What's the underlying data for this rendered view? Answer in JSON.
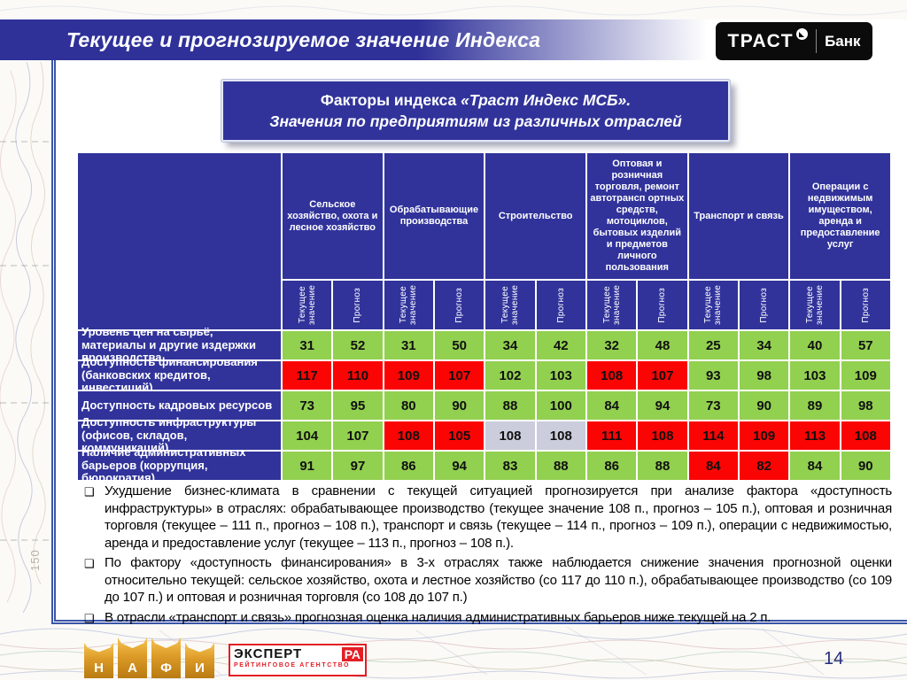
{
  "slide": {
    "header": {
      "title": "Текущее и прогнозируемое значение Индекса"
    },
    "logo": {
      "brand": "ТРАСТ",
      "bank": "Банк"
    },
    "title_box": {
      "line1_a": "Факторы индекса ",
      "line1_b": "«Траст Индекс МСБ».",
      "line2": "Значения по предприятиям из различных отраслей"
    },
    "page_number": "14",
    "map_label": "150"
  },
  "table": {
    "industries": [
      "Сельское хозяйство, охота и лесное хозяйство",
      "Обрабатывающие производства",
      "Строительство",
      "Оптовая и розничная торговля, ремонт автотрансп ортных средств, мотоциклов, бытовых изделий и предметов личного пользования",
      "Транспорт и связь",
      "Операции с недвижимым имуществом, аренда и предоставление услуг"
    ],
    "subheaders": {
      "current": "Текущее значение",
      "forecast": "Прогноз"
    },
    "rows": [
      {
        "label": "Уровень цен на сырьё, материалы и другие издержки производства",
        "values": [
          31,
          52,
          31,
          50,
          34,
          42,
          32,
          48,
          25,
          34,
          40,
          57
        ],
        "colors": [
          "g",
          "g",
          "g",
          "g",
          "g",
          "g",
          "g",
          "g",
          "g",
          "g",
          "g",
          "g"
        ]
      },
      {
        "label": "Доступность финансирования (банковских кредитов, инвестиций)",
        "values": [
          117,
          110,
          109,
          107,
          102,
          103,
          108,
          107,
          93,
          98,
          103,
          109
        ],
        "colors": [
          "r",
          "r",
          "r",
          "r",
          "g",
          "g",
          "r",
          "r",
          "g",
          "g",
          "g",
          "g"
        ]
      },
      {
        "label": "Доступность кадровых ресурсов",
        "values": [
          73,
          95,
          80,
          90,
          88,
          100,
          84,
          94,
          73,
          90,
          89,
          98
        ],
        "colors": [
          "g",
          "g",
          "g",
          "g",
          "g",
          "g",
          "g",
          "g",
          "g",
          "g",
          "g",
          "g"
        ]
      },
      {
        "label": "Доступность инфраструктуры (офисов, складов, коммуникаций)",
        "values": [
          104,
          107,
          108,
          105,
          108,
          108,
          111,
          108,
          114,
          109,
          113,
          108
        ],
        "colors": [
          "g",
          "g",
          "r",
          "r",
          "n",
          "n",
          "r",
          "r",
          "r",
          "r",
          "r",
          "r"
        ]
      },
      {
        "label": "Наличие административных барьеров (коррупция, бюрократия)",
        "values": [
          91,
          97,
          86,
          94,
          83,
          88,
          86,
          88,
          84,
          82,
          84,
          90
        ],
        "colors": [
          "g",
          "g",
          "g",
          "g",
          "g",
          "g",
          "g",
          "g",
          "r",
          "r",
          "g",
          "g"
        ]
      }
    ]
  },
  "bullet_icon": "❑",
  "bullets": [
    "Ухудшение бизнес-климата в сравнении с текущей ситуацией прогнозируется при анализе фактора «доступность инфраструктуры» в отраслях:  обрабатывающее производство (текущее значение 108 п., прогноз – 105 п.), оптовая и розничная торговля (текущее – 111 п., прогноз – 108 п.), транспорт и связь (текущее – 114 п., прогноз – 109 п.), операции с недвижимостью, аренда и предоставление услуг (текущее – 113 п., прогноз – 108 п.).",
    "По фактору «доступность финансирования» в 3-х отраслях также наблюдается снижение значения прогнозной оценки относительно текущей: сельское хозяйство, охота и лестное хозяйство (со 117 до 110 п.), обрабатывающее производство (со 109 до 107 п.) и оптовая и розничная торговля (со 108 до 107 п.)",
    "В отрасли «транспорт и связь» прогнозная оценка наличия административных барьеров ниже текущей на 2 п."
  ],
  "footer": {
    "nafi": {
      "letters": [
        "Н",
        "А",
        "Ф",
        "И"
      ]
    },
    "expert": {
      "name": "ЭКСПЕРТ",
      "ra": "РА",
      "subtitle": "РЕЙТИНГОВОЕ АГЕНТСТВО"
    }
  },
  "colors": {
    "g": "#92D050",
    "r": "#FB0404",
    "n": "#CBCCDC",
    "blue": "#31339B"
  }
}
